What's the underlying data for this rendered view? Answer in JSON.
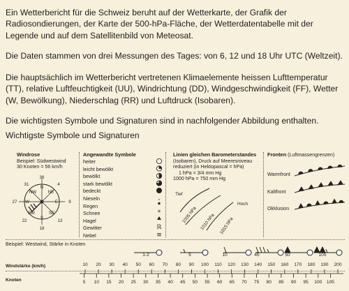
{
  "paragraphs": [
    "Ein Wetterbericht für die Schweiz beruht auf der Wetterkarte, der Grafik der Radiosondierungen, der Karte der 500-hPa-Fläche, der Wetterdatentabelle mit der Legende und auf dem Satellitenbild von Meteosat.",
    "Die Daten stammen von drei Messungen des Tages: von 6, 12 und 18 Uhr UTC (Weltzeit).",
    "Die hauptsächlich im Wetterbericht vertretenen Klimaelemente heissen Lufttemperatur (TT), relative Luftfeuchtigkeit (UU), Windrichtung (DD), Windgeschwindigkeit (FF), Wetter (W, Bewölkung), Niederschlag (RR) und Luftdruck (Isobaren).",
    "Die wichtigsten Symbole und Signaturen sind in nachfolgender Abbildung enthalten."
  ],
  "section_heading": "Wichtigste Symbole und Signaturen",
  "windrose": {
    "title": "Windrose",
    "example": "Beispiel: Südwestwind",
    "scale": "30 Knoten = 56 km/h",
    "degrees": [
      "36",
      "9",
      "18",
      "27",
      "31",
      "4",
      "13",
      "22"
    ],
    "directions": [
      "N",
      "NW",
      "NE",
      "W",
      "E",
      "SW",
      "SE",
      "S"
    ]
  },
  "symbols": {
    "title": "Angewandte Symbole",
    "items": [
      "heiter",
      "leicht bewölkt",
      "bewölkt",
      "stark bewölkt",
      "bedeckt",
      "Nieseln",
      "Regen",
      "Schnee",
      "Hagel",
      "Gewitter",
      "Nebel"
    ]
  },
  "isobars": {
    "title": "Linien gleichen Barometerstandes",
    "lines": [
      "(Isobaren), Druck auf Meeresniveau",
      "reduziert (in Hektopascal = hPa)",
      "1 hPa = 3/4 mm Hg",
      "1000 hPa = 750 mm Hg"
    ],
    "tief": "Tief",
    "hoch": "Hoch",
    "labels": [
      "1005 hPa",
      "1010 hPa",
      "1015 hPa"
    ]
  },
  "fronts": {
    "title": "Fronten",
    "subtitle": "(Luftmassengrenzen)",
    "items": [
      "Warmfront",
      "Kaltfront",
      "Okklusion"
    ]
  },
  "wind_example": {
    "label": "Beispiel: Westwind, Stärke in Knoten",
    "values": [
      "1-2",
      "5",
      "10",
      "45",
      "50",
      "105"
    ]
  },
  "wind_scale": {
    "kmh_label": "Windstärke (km/h)",
    "knots_label": "Knoten",
    "kmh": [
      "10",
      "20",
      "30",
      "40",
      "50",
      "60",
      "70",
      "80",
      "90",
      "100",
      "110",
      "120",
      "130",
      "140",
      "150",
      "160",
      "170",
      "180",
      "190",
      "200"
    ],
    "knots": [
      "5",
      "10",
      "15",
      "20",
      "25",
      "30",
      "35",
      "40",
      "45",
      "50",
      "55",
      "60",
      "65",
      "70",
      "75",
      "80",
      "85",
      "90",
      "95",
      "100",
      "105"
    ]
  }
}
